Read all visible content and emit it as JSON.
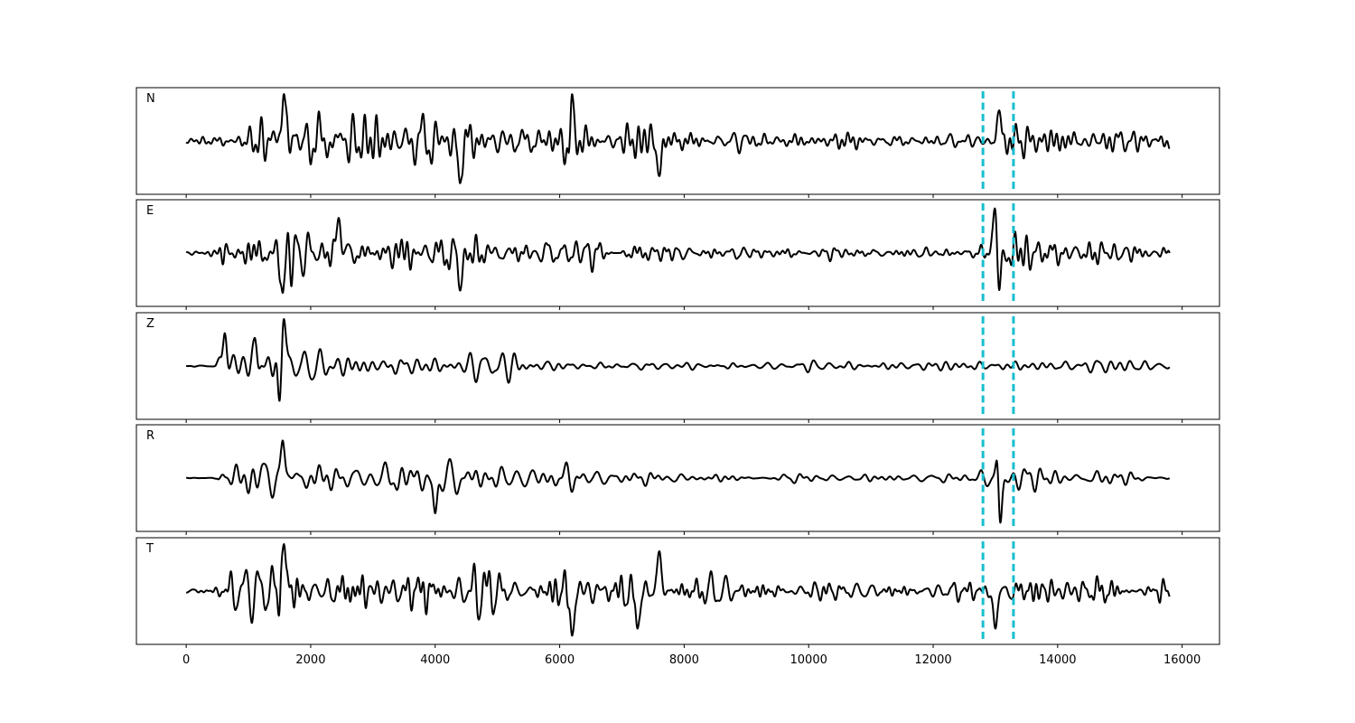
{
  "chart_data": {
    "type": "line",
    "subtype": "stacked seismogram traces",
    "title": "",
    "xlabel": "",
    "ylabel": "",
    "xlim": [
      -800,
      16600
    ],
    "x_ticks": [
      0,
      2000,
      4000,
      6000,
      8000,
      10000,
      12000,
      14000,
      16000
    ],
    "x_tick_labels": [
      "0",
      "2000",
      "4000",
      "6000",
      "8000",
      "10000",
      "12000",
      "14000",
      "16000"
    ],
    "y_ticks_shown": false,
    "grid": false,
    "legend": "none",
    "trace_color": "#000000",
    "pick_color": "#17becf",
    "vertical_markers": [
      12800,
      13290
    ],
    "n_samples": 15800,
    "series": [
      {
        "name": "N",
        "envelope": [
          [
            0,
            0.1
          ],
          [
            500,
            0.15
          ],
          [
            700,
            0.55
          ],
          [
            1000,
            0.7
          ],
          [
            1500,
            0.95
          ],
          [
            2000,
            0.9
          ],
          [
            2500,
            0.9
          ],
          [
            3000,
            0.75
          ],
          [
            4000,
            0.7
          ],
          [
            4500,
            0.75
          ],
          [
            5000,
            0.55
          ],
          [
            5500,
            0.45
          ],
          [
            6100,
            0.7
          ],
          [
            6500,
            0.5
          ],
          [
            7000,
            0.6
          ],
          [
            7500,
            0.6
          ],
          [
            8000,
            0.4
          ],
          [
            8500,
            0.35
          ],
          [
            9000,
            0.3
          ],
          [
            9500,
            0.3
          ],
          [
            10000,
            0.25
          ],
          [
            11000,
            0.2
          ],
          [
            12000,
            0.2
          ],
          [
            12800,
            0.3
          ],
          [
            13000,
            0.55
          ],
          [
            13500,
            0.5
          ],
          [
            14000,
            0.45
          ],
          [
            15000,
            0.5
          ],
          [
            15800,
            0.4
          ]
        ],
        "peaks": [
          [
            1570,
            1.0
          ],
          [
            6170,
            -0.95
          ],
          [
            6200,
            1.0
          ],
          [
            4400,
            -0.9
          ],
          [
            7600,
            -0.75
          ],
          [
            13060,
            0.65
          ]
        ]
      },
      {
        "name": "E",
        "envelope": [
          [
            0,
            0.05
          ],
          [
            500,
            0.1
          ],
          [
            600,
            0.7
          ],
          [
            1000,
            0.75
          ],
          [
            1500,
            0.8
          ],
          [
            2000,
            0.65
          ],
          [
            2500,
            0.6
          ],
          [
            3000,
            0.5
          ],
          [
            4000,
            0.7
          ],
          [
            4500,
            0.6
          ],
          [
            5000,
            0.35
          ],
          [
            6000,
            0.4
          ],
          [
            7000,
            0.3
          ],
          [
            7500,
            0.3
          ],
          [
            8000,
            0.2
          ],
          [
            9000,
            0.2
          ],
          [
            10000,
            0.15
          ],
          [
            11000,
            0.15
          ],
          [
            12000,
            0.15
          ],
          [
            12700,
            0.15
          ],
          [
            12900,
            0.5
          ],
          [
            13050,
            1.0
          ],
          [
            13300,
            0.6
          ],
          [
            13600,
            0.65
          ],
          [
            14000,
            0.5
          ],
          [
            15000,
            0.35
          ],
          [
            15800,
            0.3
          ]
        ],
        "peaks": [
          [
            13050,
            -1.0
          ],
          [
            12990,
            0.95
          ],
          [
            4400,
            -0.8
          ],
          [
            1550,
            -0.85
          ],
          [
            2450,
            0.75
          ]
        ]
      },
      {
        "name": "Z",
        "envelope": [
          [
            0,
            0.04
          ],
          [
            450,
            0.05
          ],
          [
            600,
            0.55
          ],
          [
            1000,
            0.7
          ],
          [
            1300,
            0.6
          ],
          [
            1500,
            0.95
          ],
          [
            2000,
            0.5
          ],
          [
            2500,
            0.4
          ],
          [
            3000,
            0.45
          ],
          [
            4000,
            0.25
          ],
          [
            4500,
            0.3
          ],
          [
            5000,
            0.4
          ],
          [
            5800,
            0.3
          ],
          [
            6000,
            0.2
          ],
          [
            7000,
            0.15
          ],
          [
            8000,
            0.12
          ],
          [
            10000,
            0.15
          ],
          [
            11000,
            0.12
          ],
          [
            12000,
            0.15
          ],
          [
            13000,
            0.2
          ],
          [
            14000,
            0.18
          ],
          [
            15000,
            0.2
          ],
          [
            15800,
            0.15
          ]
        ],
        "peaks": [
          [
            1510,
            -0.95
          ],
          [
            1570,
            1.0
          ],
          [
            620,
            0.7
          ],
          [
            1100,
            0.6
          ]
        ]
      },
      {
        "name": "R",
        "envelope": [
          [
            0,
            0.04
          ],
          [
            500,
            0.05
          ],
          [
            600,
            0.6
          ],
          [
            1000,
            0.65
          ],
          [
            1500,
            0.75
          ],
          [
            2000,
            0.6
          ],
          [
            2500,
            0.55
          ],
          [
            3000,
            0.45
          ],
          [
            4000,
            0.7
          ],
          [
            4500,
            0.55
          ],
          [
            5000,
            0.35
          ],
          [
            6000,
            0.45
          ],
          [
            7000,
            0.3
          ],
          [
            8000,
            0.2
          ],
          [
            9000,
            0.15
          ],
          [
            10000,
            0.15
          ],
          [
            11000,
            0.15
          ],
          [
            12000,
            0.15
          ],
          [
            12700,
            0.15
          ],
          [
            12950,
            0.55
          ],
          [
            13050,
            1.0
          ],
          [
            13300,
            0.55
          ],
          [
            13600,
            0.5
          ],
          [
            14000,
            0.4
          ],
          [
            15000,
            0.3
          ],
          [
            15800,
            0.2
          ]
        ],
        "peaks": [
          [
            13050,
            1.0
          ],
          [
            13080,
            -0.95
          ],
          [
            4000,
            -0.75
          ],
          [
            1550,
            0.8
          ]
        ]
      },
      {
        "name": "T",
        "envelope": [
          [
            0,
            0.08
          ],
          [
            500,
            0.12
          ],
          [
            700,
            0.55
          ],
          [
            1000,
            0.75
          ],
          [
            1500,
            1.0
          ],
          [
            2000,
            0.9
          ],
          [
            2500,
            0.85
          ],
          [
            3000,
            0.75
          ],
          [
            4000,
            0.75
          ],
          [
            4500,
            0.7
          ],
          [
            5000,
            0.55
          ],
          [
            5500,
            0.45
          ],
          [
            6200,
            0.9
          ],
          [
            6500,
            0.55
          ],
          [
            7000,
            0.65
          ],
          [
            7500,
            0.75
          ],
          [
            8000,
            0.45
          ],
          [
            8500,
            0.4
          ],
          [
            9000,
            0.35
          ],
          [
            10000,
            0.3
          ],
          [
            11000,
            0.25
          ],
          [
            12000,
            0.2
          ],
          [
            12800,
            0.3
          ],
          [
            13000,
            0.7
          ],
          [
            13500,
            0.55
          ],
          [
            14000,
            0.5
          ],
          [
            15000,
            0.55
          ],
          [
            15800,
            0.4
          ]
        ],
        "peaks": [
          [
            1570,
            1.0
          ],
          [
            6200,
            -0.95
          ],
          [
            7600,
            0.85
          ],
          [
            7250,
            -0.8
          ],
          [
            13000,
            -0.8
          ]
        ]
      }
    ]
  }
}
